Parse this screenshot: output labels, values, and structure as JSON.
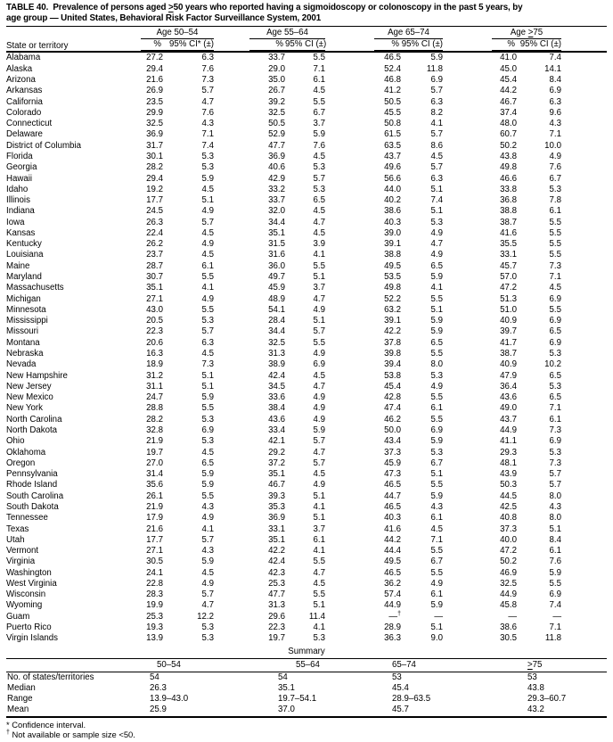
{
  "title": {
    "line1": "TABLE 40.  Prevalence of persons aged ≥50 years who reported having a sigmoidoscopy or colonoscopy in the past 5 years, by",
    "line2": "age group — United States, Behavioral Risk Factor Surveillance System, 2001"
  },
  "table": {
    "state_col_header": "State or territory",
    "age_groups": [
      {
        "label": "Age 50–54",
        "pct_header": "%",
        "ci_header": "95% CI* (±)"
      },
      {
        "label": "Age 55–64",
        "pct_header": "%",
        "ci_header": "95% CI (±)"
      },
      {
        "label": "Age 65–74",
        "pct_header": "%",
        "ci_header": "95% CI (±)"
      },
      {
        "label": "Age ≥75",
        "pct_header": "%",
        "ci_header": "95% CI (±)"
      }
    ],
    "rows": [
      {
        "state": "Alabama",
        "values": [
          "27.2",
          "6.3",
          "33.7",
          "5.5",
          "46.5",
          "5.9",
          "41.0",
          "7.4"
        ]
      },
      {
        "state": "Alaska",
        "values": [
          "29.4",
          "7.6",
          "29.0",
          "7.1",
          "52.4",
          "11.8",
          "45.0",
          "14.1"
        ]
      },
      {
        "state": "Arizona",
        "values": [
          "21.6",
          "7.3",
          "35.0",
          "6.1",
          "46.8",
          "6.9",
          "45.4",
          "8.4"
        ]
      },
      {
        "state": "Arkansas",
        "values": [
          "26.9",
          "5.7",
          "26.7",
          "4.5",
          "41.2",
          "5.7",
          "44.2",
          "6.9"
        ]
      },
      {
        "state": "California",
        "values": [
          "23.5",
          "4.7",
          "39.2",
          "5.5",
          "50.5",
          "6.3",
          "46.7",
          "6.3"
        ]
      },
      {
        "state": "Colorado",
        "values": [
          "29.9",
          "7.6",
          "32.5",
          "6.7",
          "45.5",
          "8.2",
          "37.4",
          "9.6"
        ]
      },
      {
        "state": "Connecticut",
        "values": [
          "32.5",
          "4.3",
          "50.5",
          "3.7",
          "50.8",
          "4.1",
          "48.0",
          "4.3"
        ]
      },
      {
        "state": "Delaware",
        "values": [
          "36.9",
          "7.1",
          "52.9",
          "5.9",
          "61.5",
          "5.7",
          "60.7",
          "7.1"
        ]
      },
      {
        "state": "District of Columbia",
        "values": [
          "31.7",
          "7.4",
          "47.7",
          "7.6",
          "63.5",
          "8.6",
          "50.2",
          "10.0"
        ]
      },
      {
        "state": "Florida",
        "values": [
          "30.1",
          "5.3",
          "36.9",
          "4.5",
          "43.7",
          "4.5",
          "43.8",
          "4.9"
        ]
      },
      {
        "state": "Georgia",
        "values": [
          "28.2",
          "5.3",
          "40.6",
          "5.3",
          "49.6",
          "5.7",
          "49.8",
          "7.6"
        ]
      },
      {
        "state": "Hawaii",
        "values": [
          "29.4",
          "5.9",
          "42.9",
          "5.7",
          "56.6",
          "6.3",
          "46.6",
          "6.7"
        ]
      },
      {
        "state": "Idaho",
        "values": [
          "19.2",
          "4.5",
          "33.2",
          "5.3",
          "44.0",
          "5.1",
          "33.8",
          "5.3"
        ]
      },
      {
        "state": "Illinois",
        "values": [
          "17.7",
          "5.1",
          "33.7",
          "6.5",
          "40.2",
          "7.4",
          "36.8",
          "7.8"
        ]
      },
      {
        "state": "Indiana",
        "values": [
          "24.5",
          "4.9",
          "32.0",
          "4.5",
          "38.6",
          "5.1",
          "38.8",
          "6.1"
        ]
      },
      {
        "state": "Iowa",
        "values": [
          "26.3",
          "5.7",
          "34.4",
          "4.7",
          "40.3",
          "5.3",
          "38.7",
          "5.5"
        ]
      },
      {
        "state": "Kansas",
        "values": [
          "22.4",
          "4.5",
          "35.1",
          "4.5",
          "39.0",
          "4.9",
          "41.6",
          "5.5"
        ]
      },
      {
        "state": "Kentucky",
        "values": [
          "26.2",
          "4.9",
          "31.5",
          "3.9",
          "39.1",
          "4.7",
          "35.5",
          "5.5"
        ]
      },
      {
        "state": "Louisiana",
        "values": [
          "23.7",
          "4.5",
          "31.6",
          "4.1",
          "38.8",
          "4.9",
          "33.1",
          "5.5"
        ]
      },
      {
        "state": "Maine",
        "values": [
          "28.7",
          "6.1",
          "36.0",
          "5.5",
          "49.5",
          "6.5",
          "45.7",
          "7.3"
        ]
      },
      {
        "state": "Maryland",
        "values": [
          "30.7",
          "5.5",
          "49.7",
          "5.1",
          "53.5",
          "5.9",
          "57.0",
          "7.1"
        ]
      },
      {
        "state": "Massachusetts",
        "values": [
          "35.1",
          "4.1",
          "45.9",
          "3.7",
          "49.8",
          "4.1",
          "47.2",
          "4.5"
        ]
      },
      {
        "state": "Michigan",
        "values": [
          "27.1",
          "4.9",
          "48.9",
          "4.7",
          "52.2",
          "5.5",
          "51.3",
          "6.9"
        ]
      },
      {
        "state": "Minnesota",
        "values": [
          "43.0",
          "5.5",
          "54.1",
          "4.9",
          "63.2",
          "5.1",
          "51.0",
          "5.5"
        ]
      },
      {
        "state": "Mississippi",
        "values": [
          "20.5",
          "5.3",
          "28.4",
          "5.1",
          "39.1",
          "5.9",
          "40.9",
          "6.9"
        ]
      },
      {
        "state": "Missouri",
        "values": [
          "22.3",
          "5.7",
          "34.4",
          "5.7",
          "42.2",
          "5.9",
          "39.7",
          "6.5"
        ]
      },
      {
        "state": "Montana",
        "values": [
          "20.6",
          "6.3",
          "32.5",
          "5.5",
          "37.8",
          "6.5",
          "41.7",
          "6.9"
        ]
      },
      {
        "state": "Nebraska",
        "values": [
          "16.3",
          "4.5",
          "31.3",
          "4.9",
          "39.8",
          "5.5",
          "38.7",
          "5.3"
        ]
      },
      {
        "state": "Nevada",
        "values": [
          "18.9",
          "7.3",
          "38.9",
          "6.9",
          "39.4",
          "8.0",
          "40.9",
          "10.2"
        ]
      },
      {
        "state": "New Hampshire",
        "values": [
          "31.2",
          "5.1",
          "42.4",
          "4.5",
          "53.8",
          "5.3",
          "47.9",
          "6.5"
        ]
      },
      {
        "state": "New Jersey",
        "values": [
          "31.1",
          "5.1",
          "34.5",
          "4.7",
          "45.4",
          "4.9",
          "36.4",
          "5.3"
        ]
      },
      {
        "state": "New Mexico",
        "values": [
          "24.7",
          "5.9",
          "33.6",
          "4.9",
          "42.8",
          "5.5",
          "43.6",
          "6.5"
        ]
      },
      {
        "state": "New York",
        "values": [
          "28.8",
          "5.5",
          "38.4",
          "4.9",
          "47.4",
          "6.1",
          "49.0",
          "7.1"
        ]
      },
      {
        "state": "North Carolina",
        "values": [
          "28.2",
          "5.3",
          "43.6",
          "4.9",
          "46.2",
          "5.5",
          "43.7",
          "6.1"
        ]
      },
      {
        "state": "North Dakota",
        "values": [
          "32.8",
          "6.9",
          "33.4",
          "5.9",
          "50.0",
          "6.9",
          "44.9",
          "7.3"
        ]
      },
      {
        "state": "Ohio",
        "values": [
          "21.9",
          "5.3",
          "42.1",
          "5.7",
          "43.4",
          "5.9",
          "41.1",
          "6.9"
        ]
      },
      {
        "state": "Oklahoma",
        "values": [
          "19.7",
          "4.5",
          "29.2",
          "4.7",
          "37.3",
          "5.3",
          "29.3",
          "5.3"
        ]
      },
      {
        "state": "Oregon",
        "values": [
          "27.0",
          "6.5",
          "37.2",
          "5.7",
          "45.9",
          "6.7",
          "48.1",
          "7.3"
        ]
      },
      {
        "state": "Pennsylvania",
        "values": [
          "31.4",
          "5.9",
          "35.1",
          "4.5",
          "47.3",
          "5.1",
          "43.9",
          "5.7"
        ]
      },
      {
        "state": "Rhode Island",
        "values": [
          "35.6",
          "5.9",
          "46.7",
          "4.9",
          "46.5",
          "5.5",
          "50.3",
          "5.7"
        ]
      },
      {
        "state": "South Carolina",
        "values": [
          "26.1",
          "5.5",
          "39.3",
          "5.1",
          "44.7",
          "5.9",
          "44.5",
          "8.0"
        ]
      },
      {
        "state": "South Dakota",
        "values": [
          "21.9",
          "4.3",
          "35.3",
          "4.1",
          "46.5",
          "4.3",
          "42.5",
          "4.3"
        ]
      },
      {
        "state": "Tennessee",
        "values": [
          "17.9",
          "4.9",
          "36.9",
          "5.1",
          "40.3",
          "6.1",
          "40.8",
          "8.0"
        ]
      },
      {
        "state": "Texas",
        "values": [
          "21.6",
          "4.1",
          "33.1",
          "3.7",
          "41.6",
          "4.5",
          "37.3",
          "5.1"
        ]
      },
      {
        "state": "Utah",
        "values": [
          "17.7",
          "5.7",
          "35.1",
          "6.1",
          "44.2",
          "7.1",
          "40.0",
          "8.4"
        ]
      },
      {
        "state": "Vermont",
        "values": [
          "27.1",
          "4.3",
          "42.2",
          "4.1",
          "44.4",
          "5.5",
          "47.2",
          "6.1"
        ]
      },
      {
        "state": "Virginia",
        "values": [
          "30.5",
          "5.9",
          "42.4",
          "5.5",
          "49.5",
          "6.7",
          "50.2",
          "7.6"
        ]
      },
      {
        "state": "Washington",
        "values": [
          "24.1",
          "4.5",
          "42.3",
          "4.7",
          "46.5",
          "5.5",
          "46.9",
          "5.9"
        ]
      },
      {
        "state": "West Virginia",
        "values": [
          "22.8",
          "4.9",
          "25.3",
          "4.5",
          "36.2",
          "4.9",
          "32.5",
          "5.5"
        ]
      },
      {
        "state": "Wisconsin",
        "values": [
          "28.3",
          "5.7",
          "47.7",
          "5.5",
          "57.4",
          "6.1",
          "44.9",
          "6.9"
        ]
      },
      {
        "state": "Wyoming",
        "values": [
          "19.9",
          "4.7",
          "31.3",
          "5.1",
          "44.9",
          "5.9",
          "45.8",
          "7.4"
        ]
      },
      {
        "state": "Guam",
        "values": [
          "25.3",
          "12.2",
          "29.6",
          "11.4",
          "—†",
          "—",
          "—",
          "—"
        ]
      },
      {
        "state": "Puerto Rico",
        "values": [
          "19.3",
          "5.3",
          "22.3",
          "4.1",
          "28.9",
          "5.1",
          "38.6",
          "7.1"
        ]
      },
      {
        "state": "Virgin Islands",
        "values": [
          "13.9",
          "5.3",
          "19.7",
          "5.3",
          "36.3",
          "9.0",
          "30.5",
          "11.8"
        ]
      }
    ]
  },
  "summary": {
    "title": "Summary",
    "col_headers": [
      "50–54",
      "55–64",
      "65–74",
      "≥75"
    ],
    "rows": [
      {
        "label": "No. of states/territories",
        "values": [
          "54",
          "54",
          "53",
          "53"
        ]
      },
      {
        "label": "Median",
        "values": [
          "26.3",
          "35.1",
          "45.4",
          "43.8"
        ]
      },
      {
        "label": "Range",
        "values": [
          "13.9–43.0",
          "19.7–54.1",
          "28.9–63.5",
          "29.3–60.7"
        ]
      },
      {
        "label": "Mean",
        "values": [
          "25.9",
          "37.0",
          "45.7",
          "43.2"
        ]
      }
    ]
  },
  "footnotes": [
    "* Confidence interval.",
    "† Not available or sample size <50."
  ]
}
